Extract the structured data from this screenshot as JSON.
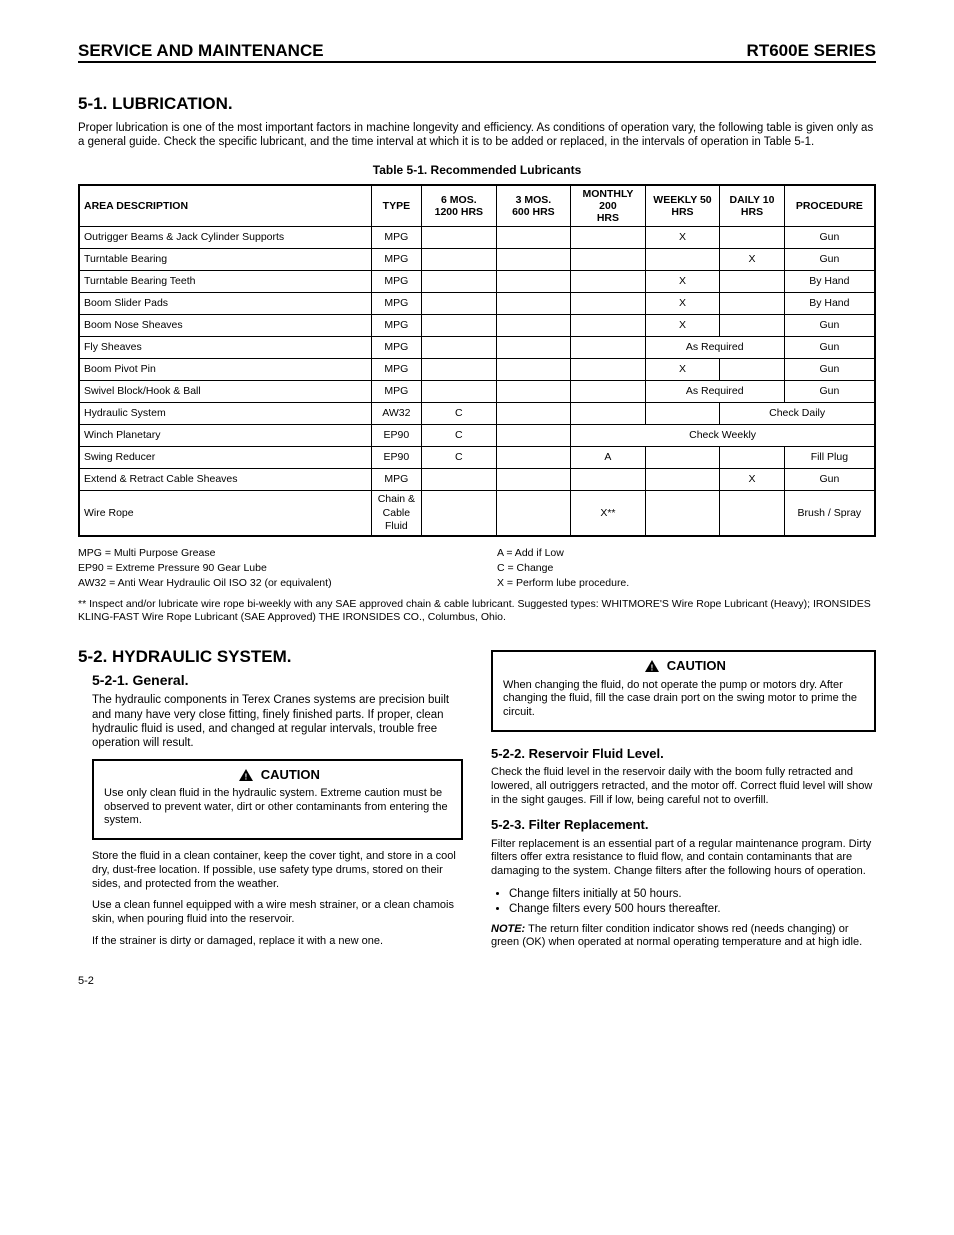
{
  "header": {
    "left": "SERVICE AND MAINTENANCE",
    "right": "RT600E SERIES"
  },
  "section": {
    "number_title": "5-1.  LUBRICATION.",
    "intro": "Proper lubrication is one of the most important factors in machine longevity and efficiency.  As conditions of operation vary, the following table is given only as a general guide.  Check the specific lubricant, and the time interval at which it is to be added or replaced, in the intervals of operation in Table 5-1."
  },
  "table": {
    "title": "Table 5-1.  Recommended Lubricants",
    "headers": [
      "AREA DESCRIPTION",
      "TYPE",
      "6 MOS. 1200 HRS",
      "3 MOS. 600 HRS",
      "MONTHLY 200 HRS",
      "WEEKLY 50 HRS",
      "DAILY 10 HRS",
      "PROCEDURE"
    ],
    "rows": [
      {
        "desc": "Outrigger Beams & Jack Cylinder Supports",
        "type": "MPG",
        "c6": "",
        "c3": "",
        "cm": "",
        "cw": "X",
        "cd": "",
        "proc": "Gun"
      },
      {
        "desc": "Turntable Bearing",
        "type": "MPG",
        "c6": "",
        "c3": "",
        "cm": "",
        "cw": "",
        "cd": "X",
        "proc": "Gun"
      },
      {
        "desc": "Turntable Bearing Teeth",
        "type": "MPG",
        "c6": "",
        "c3": "",
        "cm": "",
        "cw": "X",
        "cd": "",
        "proc": "By Hand"
      },
      {
        "desc": "Boom Slider Pads",
        "type": "MPG",
        "c6": "",
        "c3": "",
        "cm": "",
        "cw": "X",
        "cd": "",
        "proc": "By Hand"
      },
      {
        "desc": "Boom Nose Sheaves",
        "type": "MPG",
        "c6": "",
        "c3": "",
        "cm": "",
        "cw": "X",
        "cd": "",
        "proc": "Gun"
      },
      {
        "desc": "Fly Sheaves",
        "type": "MPG",
        "c6": "",
        "c3": "",
        "cm": "",
        "cw": {
          "colspan": 2,
          "value": "As Required"
        },
        "cd": null,
        "proc": "Gun"
      },
      {
        "desc": "Boom Pivot Pin",
        "type": "MPG",
        "c6": "",
        "c3": "",
        "cm": "",
        "cw": "X",
        "cd": "",
        "proc": "Gun"
      },
      {
        "desc": "Swivel Block/Hook & Ball",
        "type": "MPG",
        "c6": "",
        "c3": "",
        "cm": "",
        "cw": {
          "colspan": 2,
          "value": "As Required"
        },
        "cd": null,
        "proc": "Gun"
      },
      {
        "desc": "Hydraulic System",
        "type": "AW32",
        "c6": "C",
        "c3": "",
        "cm": "",
        "cw": "",
        "cd": {
          "colspan": 2,
          "value": "Check Daily"
        },
        "proc": null
      },
      {
        "desc": "Winch Planetary",
        "type": "EP90",
        "c6": "C",
        "c3": "",
        "cm": {
          "colspan": 4,
          "value": "Check Weekly"
        },
        "cw": null,
        "cd": null,
        "proc": null
      },
      {
        "desc": "Swing Reducer",
        "type": "EP90",
        "c6": "C",
        "c3": "",
        "cm": "A",
        "cw": "",
        "cd": "",
        "proc": "Fill Plug"
      },
      {
        "desc": "Extend & Retract Cable Sheaves",
        "type": "MPG",
        "c6": "",
        "c3": "",
        "cm": "",
        "cw": "",
        "cd": "X",
        "proc": "Gun"
      },
      {
        "desc": "Wire Rope",
        "type": "Chain & Cable Fluid",
        "c6": "",
        "c3": "",
        "cm": "X**",
        "cw": "",
        "cd": "",
        "proc": "Brush / Spray"
      }
    ]
  },
  "legend": {
    "items": [
      "MPG = Multi Purpose Grease",
      "A = Add if Low",
      "EP90 = Extreme Pressure 90 Gear Lube",
      "C = Change",
      "AW32 = Anti Wear Hydraulic Oil ISO 32 (or equivalent)",
      "X = Perform lube procedure."
    ],
    "doubleast": "** Inspect and/or lubricate wire rope bi-weekly with any SAE approved chain & cable lubricant.  Suggested types:  WHITMORE'S Wire Rope Lubricant (Heavy); IRONSIDES KLING-FAST Wire Rope Lubricant (SAE Approved) THE IRONSIDES CO., Columbus, Ohio."
  },
  "hydraulic": {
    "number_title": "5-2.  HYDRAULIC SYSTEM.",
    "general_title": "5-2-1.  General.",
    "p1": "The hydraulic components in Terex Cranes systems are precision built and many have very close fitting, finely finished parts.  If proper, clean hydraulic fluid is used, and changed at regular intervals, trouble free operation will result.",
    "caution1_label": "CAUTION",
    "caution1_body": "Use only clean fluid in the hydraulic system. Extreme caution must be observed to prevent water, dirt or other contaminants from entering the system.",
    "p2": "Store the fluid in a clean container, keep the cover tight, and store in a cool dry, dust-free location. If possible, use safety type drums, stored on their sides, and protected from the weather.",
    "p3": "Use a clean funnel equipped with a wire mesh strainer, or a clean chamois skin, when pouring fluid into the reservoir.",
    "p4": "If the strainer is dirty or damaged, replace it with a new one.",
    "caution2_label": "CAUTION",
    "caution2_body": "When changing the fluid, do not operate the pump or motors dry. After changing the fluid, fill the case drain port on the swing motor to prime the circuit.",
    "reservoir_title": "5-2-2.  Reservoir Fluid Level.",
    "reservoir_body": "Check the fluid level in the reservoir daily with the boom fully retracted and lowered, all outriggers retracted, and the motor off.  Correct fluid level will show in the sight gauges.  Fill if low, being careful not to overfill.",
    "filter_title": "5-2-3.  Filter Replacement.",
    "filter_p1": "Filter replacement is an essential part of a regular maintenance program.  Dirty filters offer extra resistance to fluid flow, and contain contaminants that are damaging to the system. Change filters after the following hours of operation.",
    "filter_bullets": [
      "Change filters initially at 50 hours.",
      "Change filters every 500 hours thereafter."
    ],
    "filter_note": "NOTE:  The return filter condition indicator shows red (needs changing) or green (OK) when operated at normal operating temperature and at high idle."
  },
  "page_number": "5-2"
}
